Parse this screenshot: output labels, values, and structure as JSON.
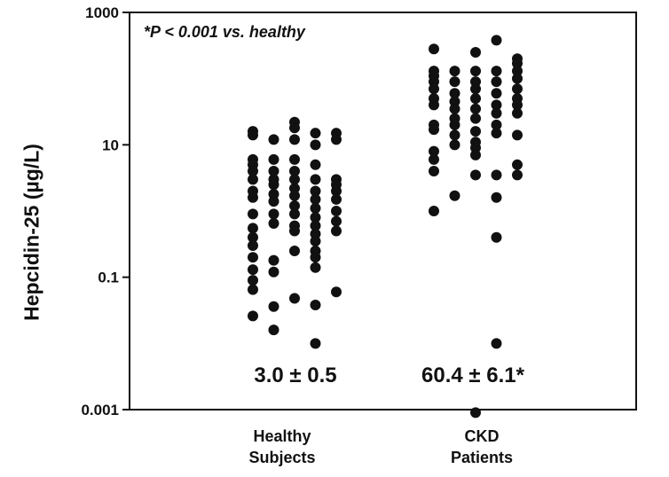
{
  "chart_data": {
    "type": "scatter",
    "title": "",
    "xlabel": "",
    "ylabel": "Hepcidin-25 (µg/L)",
    "yscale": "log",
    "ylim": [
      0.001,
      1000
    ],
    "yticks": [
      0.001,
      0.1,
      10,
      1000
    ],
    "ytick_labels": [
      "0.001",
      "0.1",
      "10",
      "1000"
    ],
    "annotation": "*P < 0.001 vs. healthy",
    "categories": [
      {
        "line1": "Healthy",
        "line2": "Subjects"
      },
      {
        "line1": "CKD",
        "line2": "Patients"
      }
    ],
    "summary": [
      "3.0 ± 0.5",
      "60.4 ± 6.1*"
    ],
    "series": [
      {
        "name": "Healthy Subjects",
        "columns": [
          {
            "offset": 0,
            "values": [
              16,
              14,
              6,
              5,
              4,
              3,
              2,
              1.6,
              0.9,
              0.55,
              0.4,
              0.3,
              0.2,
              0.13,
              0.09,
              0.065,
              0.026
            ]
          },
          {
            "offset": 1,
            "values": [
              12,
              6,
              4,
              3,
              2.5,
              1.8,
              1.4,
              0.9,
              0.65,
              0.18,
              0.12,
              0.036,
              0.016
            ]
          },
          {
            "offset": 2,
            "values": [
              22,
              18,
              12,
              6,
              4,
              3,
              2.2,
              1.7,
              1.2,
              0.9,
              0.6,
              0.5,
              0.25,
              0.048
            ]
          },
          {
            "offset": 3,
            "values": [
              15,
              10,
              5,
              3,
              2,
              1.5,
              1.1,
              0.8,
              0.6,
              0.45,
              0.35,
              0.25,
              0.2,
              0.14,
              0.038,
              0.01
            ]
          },
          {
            "offset": 4,
            "values": [
              15,
              12,
              3,
              2.5,
              2,
              1.5,
              1,
              0.7,
              0.5,
              0.06
            ]
          }
        ]
      },
      {
        "name": "CKD Patients",
        "columns": [
          {
            "offset": 0,
            "values": [
              280,
              130,
              110,
              90,
              70,
              50,
              40,
              20,
              17,
              8,
              6,
              4,
              1
            ]
          },
          {
            "offset": 1,
            "values": [
              130,
              90,
              60,
              45,
              35,
              25,
              20,
              14,
              10,
              1.7
            ]
          },
          {
            "offset": 2,
            "values": [
              250,
              130,
              90,
              70,
              50,
              35,
              25,
              16,
              11,
              9,
              7,
              3.5,
              0.0009
            ]
          },
          {
            "offset": 3,
            "values": [
              380,
              130,
              90,
              60,
              40,
              30,
              20,
              15,
              3.5,
              1.6,
              0.4,
              0.01
            ]
          },
          {
            "offset": 4,
            "values": [
              200,
              170,
              130,
              100,
              70,
              50,
              40,
              30,
              14,
              5,
              3.5
            ]
          }
        ]
      }
    ]
  }
}
